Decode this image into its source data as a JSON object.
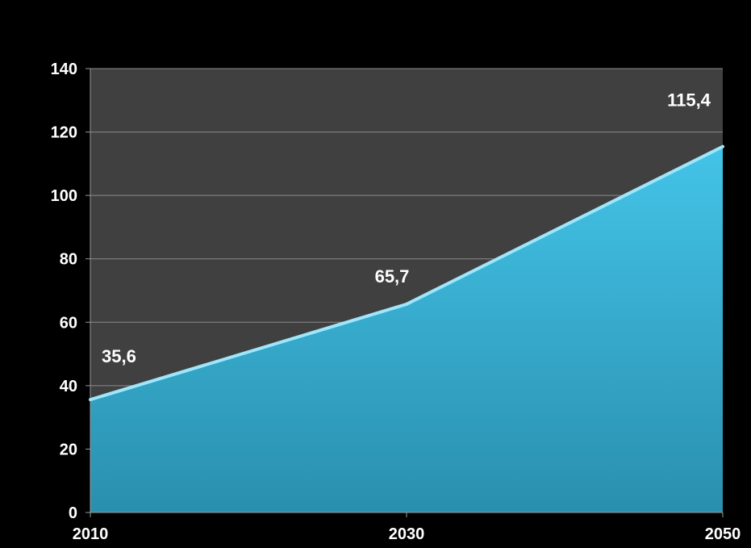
{
  "chart_data": {
    "type": "area",
    "x": [
      "2010",
      "2030",
      "2050"
    ],
    "series": [
      {
        "values": [
          35.6,
          65.7,
          115.4
        ]
      }
    ],
    "data_labels": [
      "35,6",
      "65,7",
      "115,4"
    ],
    "ylim": [
      0,
      140
    ],
    "yticks": [
      0,
      20,
      40,
      60,
      80,
      100,
      120,
      140
    ],
    "ytick_labels": [
      "0",
      "20",
      "40",
      "60",
      "80",
      "100",
      "120",
      "140"
    ],
    "xtick_labels": [
      "2010",
      "2030",
      "2050"
    ],
    "grid": true,
    "colors": {
      "background": "#000000",
      "plot_area": "#404040",
      "gridline": "#8a8a8a",
      "area_top": "#43c4e8",
      "area_bottom": "#2a8fae",
      "line": "#9fe6fb",
      "text": "#ffffff"
    }
  }
}
